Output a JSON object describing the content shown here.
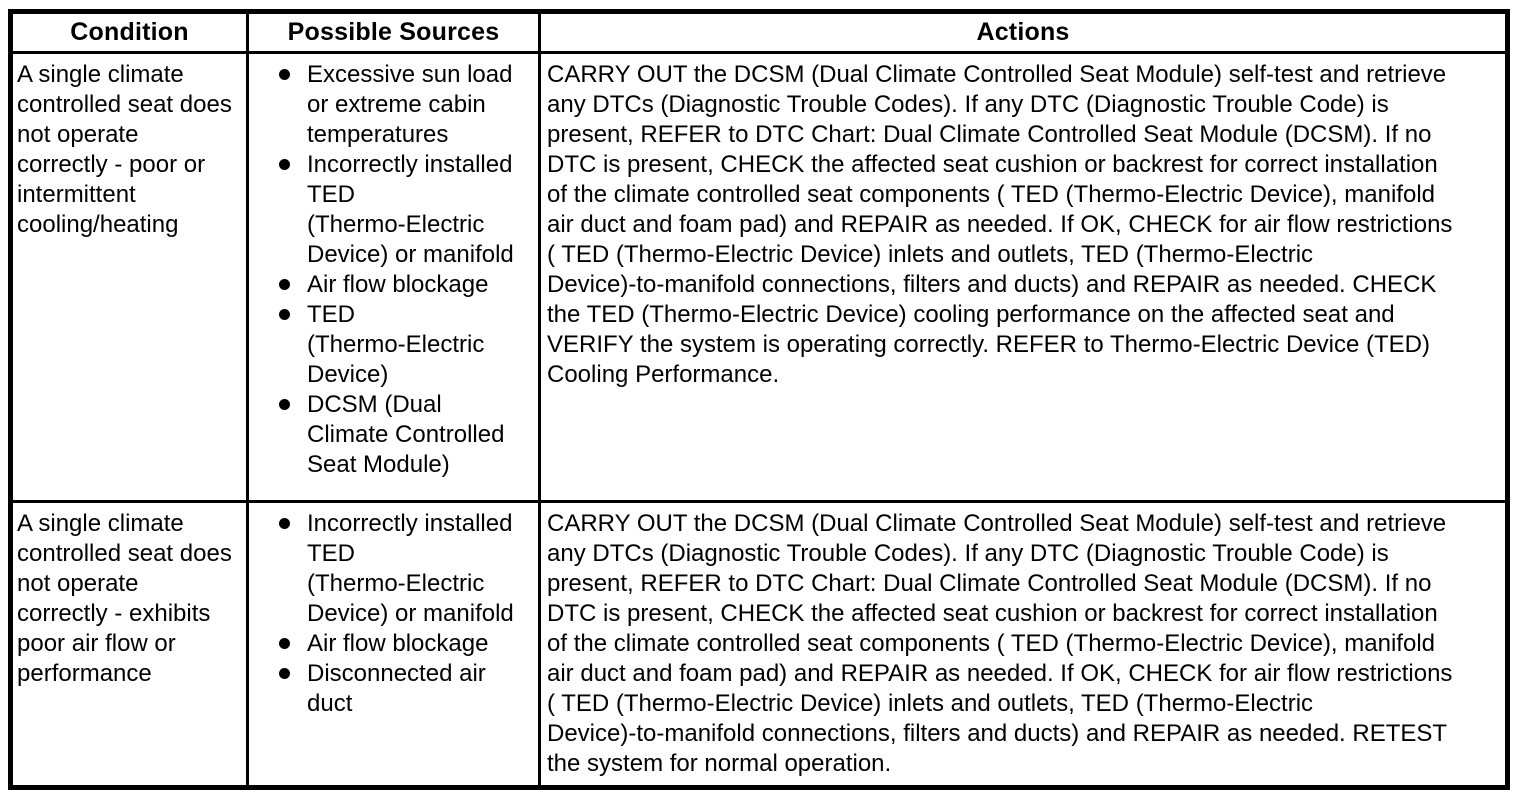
{
  "colors": {
    "border": "#000000",
    "text": "#000000",
    "background": "#ffffff"
  },
  "table": {
    "headers": [
      "Condition",
      "Possible Sources",
      "Actions"
    ],
    "rows": [
      {
        "condition": "A single climate controlled seat does not operate correctly - poor or intermittent cooling/heating",
        "sources": [
          "Excessive sun load or extreme cabin temperatures",
          "Incorrectly installed TED (Thermo-Electric Device) or manifold",
          "Air flow blockage",
          "TED (Thermo-Electric Device)",
          "DCSM (Dual Climate Controlled Seat Module)"
        ],
        "actions": "CARRY OUT the DCSM (Dual Climate Controlled Seat Module) self-test and retrieve any DTCs (Diagnostic Trouble Codes). If any DTC (Diagnostic Trouble Code) is present, REFER to DTC Chart: Dual Climate Controlled Seat Module (DCSM). If no DTC is present, CHECK the affected seat cushion or backrest for correct installation of the climate controlled seat components ( TED (Thermo-Electric Device), manifold air duct and foam pad) and REPAIR as needed. If OK, CHECK for air flow restrictions ( TED (Thermo-Electric Device) inlets and outlets, TED (Thermo-Electric Device)-to-manifold connections, filters and ducts) and REPAIR as needed. CHECK the TED (Thermo-Electric Device) cooling performance on the affected seat and VERIFY the system is operating correctly. REFER to Thermo-Electric Device (TED) Cooling Performance."
      },
      {
        "condition": "A single climate controlled seat does not operate correctly - exhibits poor air flow or performance",
        "sources": [
          "Incorrectly installed TED (Thermo-Electric Device) or manifold",
          "Air flow blockage",
          "Disconnected air duct"
        ],
        "actions": "CARRY OUT the DCSM (Dual Climate Controlled Seat Module) self-test and retrieve any DTCs (Diagnostic Trouble Codes). If any DTC (Diagnostic Trouble Code) is present, REFER to DTC Chart: Dual Climate Controlled Seat Module (DCSM). If no DTC is present, CHECK the affected seat cushion or backrest for correct installation of the climate controlled seat components ( TED (Thermo-Electric Device), manifold air duct and foam pad) and REPAIR as needed. If OK, CHECK for air flow restrictions ( TED (Thermo-Electric Device) inlets and outlets, TED (Thermo-Electric Device)-to-manifold connections, filters and ducts) and REPAIR as needed. RETEST the system for normal operation."
      }
    ]
  }
}
